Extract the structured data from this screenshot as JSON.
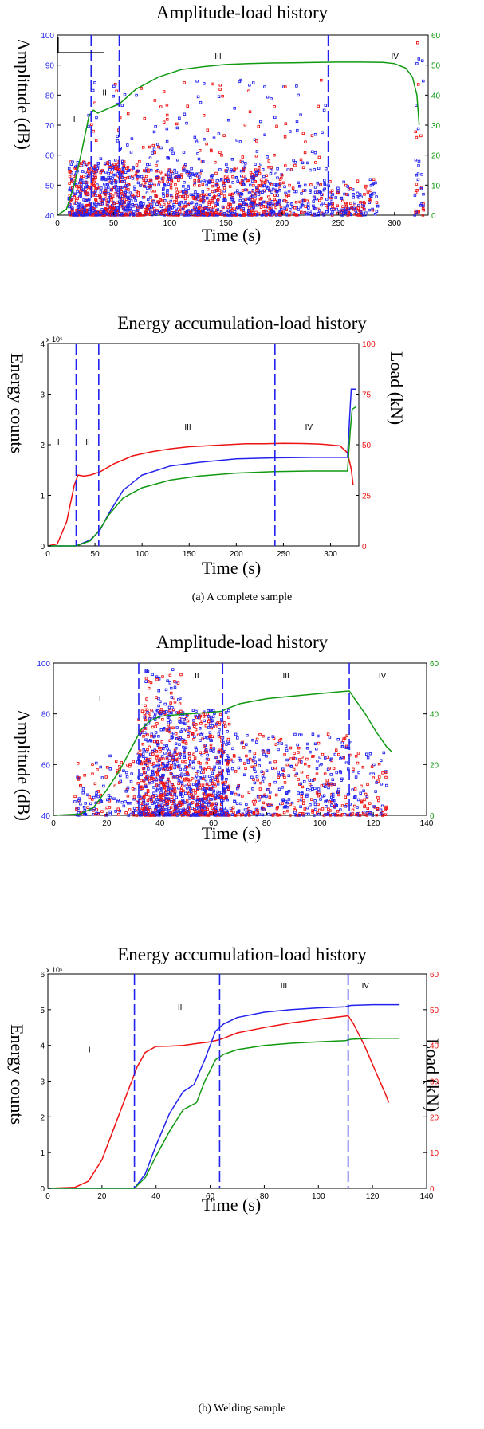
{
  "figure": {
    "caption_a": "(a) A complete sample",
    "caption_b": "(b) Welding sample"
  },
  "colors": {
    "blue": "#2222ee",
    "red": "#ee1111",
    "green": "#119911",
    "black": "#000000"
  },
  "chart_data": [
    {
      "id": "a_amplitude",
      "type": "scatter",
      "title": "Amplitude-load history",
      "xlabel": "Time (s)",
      "ylabel": "Amplitude (dB)",
      "ylabel_right": "",
      "xlim": [
        0,
        330
      ],
      "ylim": [
        40,
        100
      ],
      "y2lim": [
        0,
        60
      ],
      "xticks": [
        0,
        50,
        100,
        150,
        200,
        250,
        300
      ],
      "yticks": [
        40,
        50,
        60,
        70,
        80,
        90,
        100
      ],
      "y2ticks": [
        0,
        10,
        20,
        30,
        40,
        50,
        60
      ],
      "tick_color_left": "#2222ee",
      "tick_color_right": "#119911",
      "stage_lines": [
        30,
        55,
        241
      ],
      "stage_labels": [
        {
          "text": "I",
          "x": 14,
          "y": 71
        },
        {
          "text": "II",
          "x": 40,
          "y": 80
        },
        {
          "text": "III",
          "x": 140,
          "y": 92
        },
        {
          "text": "IV",
          "x": 297,
          "y": 92
        }
      ],
      "series": [
        {
          "name": "",
          "kind": "line",
          "axis": "right",
          "color": "#119911",
          "x": [
            0,
            8,
            15,
            22,
            28,
            32,
            36,
            42,
            48,
            55,
            70,
            90,
            110,
            130,
            150,
            170,
            190,
            210,
            230,
            250,
            270,
            290,
            300,
            310,
            316,
            320,
            322
          ],
          "y": [
            0,
            2,
            10,
            22,
            33,
            35,
            34,
            35,
            36,
            37,
            42,
            46,
            48.5,
            49.5,
            50.2,
            50.5,
            50.7,
            50.8,
            50.9,
            51,
            51,
            50.9,
            50.5,
            49,
            46,
            40,
            30
          ]
        }
      ],
      "scatter_density": [
        {
          "x_range": [
            10,
            60
          ],
          "y_range": [
            40,
            58
          ],
          "n": 520
        },
        {
          "x_range": [
            60,
            200
          ],
          "y_range": [
            40,
            55
          ],
          "n": 900
        },
        {
          "x_range": [
            200,
            285
          ],
          "y_range": [
            40,
            52
          ],
          "n": 260
        },
        {
          "x_range": [
            25,
            240
          ],
          "y_range": [
            55,
            85
          ],
          "n": 220
        },
        {
          "x_range": [
            318,
            326
          ],
          "y_range": [
            40,
            100
          ],
          "n": 40
        }
      ]
    },
    {
      "id": "a_energy",
      "type": "line",
      "title": "Energy accumulation-load history",
      "xlabel": "Time (s)",
      "ylabel": "Energy counts",
      "ylabel_right": "Load (kN)",
      "multiplier_label": "x 10⁵",
      "xlim": [
        0,
        330
      ],
      "ylim": [
        0,
        4
      ],
      "y2lim": [
        0,
        100
      ],
      "xticks": [
        0,
        50,
        100,
        150,
        200,
        250,
        300
      ],
      "yticks": [
        0,
        1,
        2,
        3,
        4
      ],
      "y2ticks": [
        0,
        25,
        50,
        75,
        100
      ],
      "tick_color_left": "#000000",
      "tick_color_right": "#ee1111",
      "stage_lines": [
        30,
        54,
        241
      ],
      "stage_labels": [
        {
          "text": "I",
          "x": 10,
          "y": 2.0
        },
        {
          "text": "II",
          "x": 40,
          "y": 2.0
        },
        {
          "text": "III",
          "x": 145,
          "y": 2.3
        },
        {
          "text": "IV",
          "x": 273,
          "y": 2.3
        }
      ],
      "series": [
        {
          "name": "",
          "kind": "line",
          "axis": "right",
          "color": "#ee1111",
          "x": [
            0,
            10,
            20,
            28,
            32,
            38,
            45,
            55,
            70,
            90,
            110,
            130,
            150,
            170,
            190,
            210,
            230,
            250,
            270,
            290,
            310,
            318,
            322,
            324
          ],
          "y": [
            0,
            1,
            12,
            30,
            35,
            34.5,
            35,
            36.5,
            40.5,
            44.5,
            46.5,
            48,
            49,
            49.5,
            50,
            50.5,
            50.5,
            50.7,
            50.6,
            50.3,
            49.5,
            46,
            38,
            30
          ]
        },
        {
          "name": "",
          "kind": "line",
          "axis": "left",
          "color": "#2222ee",
          "x": [
            0,
            30,
            45,
            55,
            65,
            80,
            100,
            130,
            160,
            200,
            240,
            280,
            318,
            321,
            322,
            327
          ],
          "y": [
            0,
            0,
            0.12,
            0.3,
            0.65,
            1.1,
            1.4,
            1.58,
            1.65,
            1.72,
            1.74,
            1.75,
            1.75,
            2.8,
            3.1,
            3.1
          ]
        },
        {
          "name": "",
          "kind": "line",
          "axis": "left",
          "color": "#119911",
          "x": [
            0,
            30,
            45,
            55,
            65,
            80,
            100,
            130,
            160,
            200,
            240,
            280,
            318,
            321,
            323,
            327
          ],
          "y": [
            0,
            0,
            0.1,
            0.32,
            0.62,
            0.95,
            1.15,
            1.3,
            1.38,
            1.44,
            1.47,
            1.48,
            1.48,
            2.3,
            2.7,
            2.75
          ]
        }
      ]
    },
    {
      "id": "b_amplitude",
      "type": "scatter",
      "title": "Amplitude-load history",
      "xlabel": "Time (s)",
      "ylabel": "Amplitude (dB)",
      "ylabel_right": "",
      "xlim": [
        0,
        140
      ],
      "ylim": [
        40,
        100
      ],
      "y2lim": [
        0,
        60
      ],
      "xticks": [
        0,
        20,
        40,
        60,
        80,
        100,
        120,
        140
      ],
      "yticks": [
        40,
        60,
        80,
        100
      ],
      "y2ticks": [
        0,
        20,
        40,
        60
      ],
      "tick_color_left": "#2222ee",
      "tick_color_right": "#119911",
      "stage_lines": [
        32,
        63.5,
        111
      ],
      "stage_labels": [
        {
          "text": "I",
          "x": 17,
          "y": 85
        },
        {
          "text": "II",
          "x": 53,
          "y": 94
        },
        {
          "text": "III",
          "x": 86,
          "y": 94
        },
        {
          "text": "IV",
          "x": 122,
          "y": 94
        }
      ],
      "series": [
        {
          "name": "",
          "kind": "line",
          "axis": "right",
          "color": "#119911",
          "x": [
            0,
            10,
            15,
            20,
            25,
            30,
            33,
            36,
            40,
            45,
            50,
            55,
            60,
            63,
            65,
            70,
            80,
            90,
            100,
            108,
            111,
            113,
            117,
            121,
            125,
            127
          ],
          "y": [
            0,
            0.5,
            3,
            10,
            18,
            28,
            34,
            37,
            39,
            39.5,
            40,
            40.3,
            40.7,
            41,
            42,
            44,
            46,
            47,
            48,
            48.8,
            49,
            46,
            40,
            33,
            27,
            25
          ]
        }
      ],
      "scatter_density": [
        {
          "x_range": [
            8,
            32
          ],
          "y_range": [
            40,
            65
          ],
          "n": 140
        },
        {
          "x_range": [
            32,
            66
          ],
          "y_range": [
            40,
            82
          ],
          "n": 1100
        },
        {
          "x_range": [
            34,
            48
          ],
          "y_range": [
            80,
            98
          ],
          "n": 60
        },
        {
          "x_range": [
            66,
            112
          ],
          "y_range": [
            40,
            72
          ],
          "n": 420
        },
        {
          "x_range": [
            112,
            125
          ],
          "y_range": [
            40,
            65
          ],
          "n": 90
        }
      ]
    },
    {
      "id": "b_energy",
      "type": "line",
      "title": "Energy accumulation-load history",
      "xlabel": "Time (s)",
      "ylabel": "Energy counts",
      "ylabel_right": "Load (kN)",
      "multiplier_label": "x 10⁵",
      "xlim": [
        0,
        140
      ],
      "ylim": [
        0,
        6
      ],
      "y2lim": [
        0,
        60
      ],
      "xticks": [
        0,
        20,
        40,
        60,
        80,
        100,
        120,
        140
      ],
      "yticks": [
        0,
        1,
        2,
        3,
        4,
        5,
        6
      ],
      "y2ticks": [
        0,
        10,
        20,
        30,
        40,
        50,
        60
      ],
      "tick_color_left": "#000000",
      "tick_color_right": "#ee1111",
      "stage_lines": [
        32,
        63.5,
        111
      ],
      "stage_labels": [
        {
          "text": "I",
          "x": 15,
          "y": 3.8
        },
        {
          "text": "II",
          "x": 48,
          "y": 5.0
        },
        {
          "text": "III",
          "x": 86,
          "y": 5.6
        },
        {
          "text": "IV",
          "x": 116,
          "y": 5.6
        }
      ],
      "series": [
        {
          "name": "",
          "kind": "line",
          "axis": "right",
          "color": "#ee1111",
          "x": [
            0,
            10,
            15,
            20,
            25,
            30,
            33,
            36,
            40,
            45,
            50,
            55,
            60,
            63,
            65,
            70,
            80,
            90,
            100,
            108,
            111,
            113,
            117,
            121,
            125,
            126
          ],
          "y": [
            0,
            0.3,
            2,
            8,
            18,
            28,
            34,
            38,
            39.7,
            39.8,
            40,
            40.5,
            41,
            41.5,
            42,
            43.5,
            45,
            46.3,
            47.3,
            48,
            48.3,
            46,
            40,
            33,
            26,
            24
          ]
        },
        {
          "name": "",
          "kind": "line",
          "axis": "left",
          "color": "#2222ee",
          "x": [
            0,
            32,
            36,
            40,
            45,
            50,
            54,
            58,
            62,
            65,
            70,
            80,
            90,
            100,
            110,
            112,
            120,
            130
          ],
          "y": [
            0,
            0,
            0.4,
            1.2,
            2.1,
            2.7,
            2.9,
            3.6,
            4.4,
            4.6,
            4.78,
            4.93,
            5.0,
            5.05,
            5.08,
            5.12,
            5.14,
            5.14
          ]
        },
        {
          "name": "",
          "kind": "line",
          "axis": "left",
          "color": "#119911",
          "x": [
            0,
            32,
            36,
            40,
            45,
            50,
            55,
            58,
            62,
            65,
            70,
            80,
            90,
            100,
            110,
            112,
            120,
            130
          ],
          "y": [
            0,
            0,
            0.3,
            0.9,
            1.6,
            2.2,
            2.4,
            3.0,
            3.6,
            3.75,
            3.88,
            4.0,
            4.06,
            4.1,
            4.13,
            4.17,
            4.2,
            4.2
          ]
        }
      ]
    }
  ]
}
